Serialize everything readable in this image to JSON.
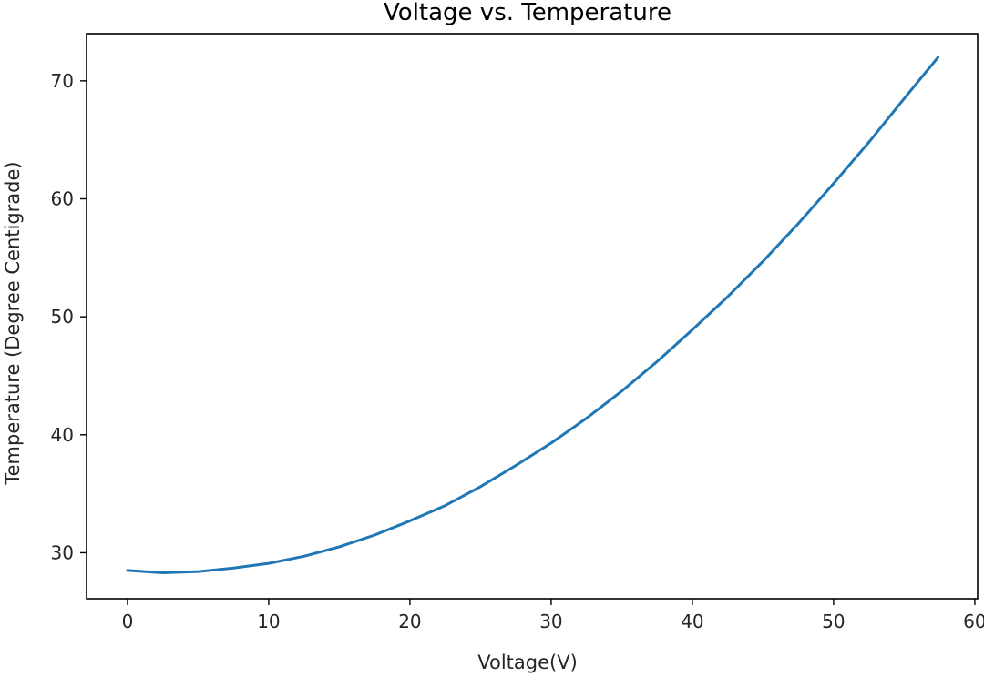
{
  "chart_data": {
    "type": "line",
    "title": "Voltage vs. Temperature",
    "xlabel": "Voltage(V)",
    "ylabel": "Temperature (Degree Centigrade)",
    "xlim": [
      -2.9,
      60.2
    ],
    "ylim": [
      26.1,
      74.0
    ],
    "xticks": [
      0,
      10,
      20,
      30,
      40,
      50,
      60
    ],
    "yticks": [
      30,
      40,
      50,
      60,
      70
    ],
    "grid": false,
    "series": [
      {
        "color": "#1f77b4",
        "x": [
          0,
          2.5,
          5,
          7.5,
          10,
          12.5,
          15,
          17.5,
          20,
          22.5,
          25,
          27.5,
          30,
          32.5,
          35,
          37.5,
          40,
          42.5,
          45,
          47.5,
          50,
          52.5,
          55,
          57.4
        ],
        "y": [
          28.5,
          28.3,
          28.4,
          28.7,
          29.1,
          29.7,
          30.5,
          31.5,
          32.7,
          34.0,
          35.6,
          37.4,
          39.3,
          41.4,
          43.7,
          46.2,
          48.9,
          51.7,
          54.7,
          57.9,
          61.3,
          64.8,
          68.5,
          72.0
        ]
      }
    ]
  }
}
